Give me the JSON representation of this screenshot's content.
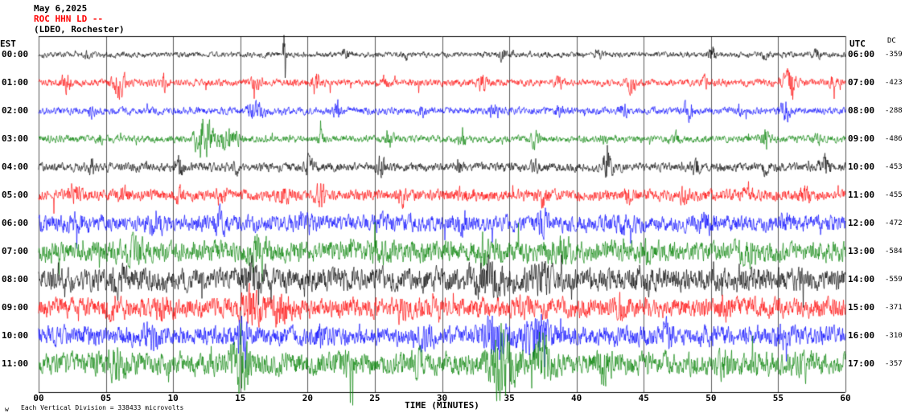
{
  "header": {
    "date": "May 6,2025",
    "station": "ROC HHN LD --",
    "network": "(LDEO, Rochester)"
  },
  "axes": {
    "left_label": "EST",
    "right_label": "UTC",
    "dc_label": "DC",
    "xlabel": "TIME (MINUTES)",
    "x_ticks": [
      "00",
      "05",
      "10",
      "15",
      "20",
      "25",
      "30",
      "35",
      "40",
      "45",
      "50",
      "55",
      "60"
    ]
  },
  "footer": {
    "mark": "w",
    "scale_note": "Each Vertical Division = 338433 microvolts"
  },
  "colors": {
    "black": "#000000",
    "red": "#ff0000",
    "blue": "#0000ff",
    "green": "#008000",
    "grid": "#5a5a5a",
    "frame": "#000000"
  },
  "chart_data": {
    "type": "line",
    "title": "ROC HHN LD -- (LDEO, Rochester) May 6,2025",
    "xlabel": "TIME (MINUTES)",
    "x_range_minutes": [
      0,
      60
    ],
    "x_tick_interval_minutes": 5,
    "grid": "vertical-only",
    "rows": [
      {
        "est": "00:00",
        "utc": "06:00",
        "dc": "-359",
        "color": "black",
        "seed": 101,
        "amp": 3.5,
        "spikes": [
          [
            0.06,
            6,
            0.004
          ],
          [
            0.305,
            52,
            0.0015
          ],
          [
            0.38,
            7,
            0.004
          ],
          [
            0.455,
            5,
            0.004
          ],
          [
            0.575,
            7,
            0.004
          ],
          [
            0.695,
            5,
            0.004
          ],
          [
            0.835,
            9,
            0.004
          ],
          [
            0.9,
            6,
            0.004
          ],
          [
            0.965,
            7,
            0.004
          ]
        ]
      },
      {
        "est": "01:00",
        "utc": "07:00",
        "dc": "-423",
        "color": "red",
        "seed": 102,
        "amp": 4.5,
        "spikes": [
          [
            0.035,
            10,
            0.006
          ],
          [
            0.1,
            16,
            0.008
          ],
          [
            0.155,
            8,
            0.004
          ],
          [
            0.27,
            9,
            0.005
          ],
          [
            0.345,
            11,
            0.005
          ],
          [
            0.43,
            7,
            0.004
          ],
          [
            0.55,
            9,
            0.005
          ],
          [
            0.645,
            9,
            0.004
          ],
          [
            0.735,
            11,
            0.005
          ],
          [
            0.825,
            7,
            0.004
          ],
          [
            0.93,
            15,
            0.008
          ],
          [
            0.985,
            8,
            0.004
          ]
        ]
      },
      {
        "est": "02:00",
        "utc": "08:00",
        "dc": "-288",
        "color": "blue",
        "seed": 103,
        "amp": 4.5,
        "spikes": [
          [
            0.065,
            7,
            0.004
          ],
          [
            0.27,
            12,
            0.01
          ],
          [
            0.37,
            10,
            0.005
          ],
          [
            0.475,
            6,
            0.004
          ],
          [
            0.565,
            9,
            0.005
          ],
          [
            0.645,
            7,
            0.004
          ],
          [
            0.725,
            9,
            0.004
          ],
          [
            0.805,
            11,
            0.006
          ],
          [
            0.87,
            6,
            0.004
          ],
          [
            0.925,
            12,
            0.006
          ]
        ]
      },
      {
        "est": "03:00",
        "utc": "09:00",
        "dc": "-486",
        "color": "green",
        "seed": 104,
        "amp": 4.5,
        "spikes": [
          [
            0.075,
            6,
            0.004
          ],
          [
            0.205,
            28,
            0.01
          ],
          [
            0.235,
            16,
            0.012
          ],
          [
            0.35,
            6,
            0.004
          ],
          [
            0.435,
            9,
            0.005
          ],
          [
            0.525,
            11,
            0.005
          ],
          [
            0.615,
            9,
            0.005
          ],
          [
            0.7,
            6,
            0.004
          ],
          [
            0.79,
            6,
            0.004
          ],
          [
            0.9,
            11,
            0.005
          ],
          [
            0.965,
            7,
            0.004
          ]
        ]
      },
      {
        "est": "04:00",
        "utc": "10:00",
        "dc": "-453",
        "color": "black",
        "seed": 105,
        "amp": 5.5,
        "spikes": [
          [
            0.065,
            9,
            0.005
          ],
          [
            0.175,
            11,
            0.005
          ],
          [
            0.245,
            7,
            0.004
          ],
          [
            0.335,
            9,
            0.005
          ],
          [
            0.425,
            11,
            0.005
          ],
          [
            0.52,
            7,
            0.004
          ],
          [
            0.615,
            7,
            0.004
          ],
          [
            0.705,
            17,
            0.006
          ],
          [
            0.815,
            9,
            0.005
          ],
          [
            0.9,
            7,
            0.004
          ],
          [
            0.975,
            15,
            0.006
          ]
        ]
      },
      {
        "est": "05:00",
        "utc": "11:00",
        "dc": "-455",
        "color": "red",
        "seed": 106,
        "amp": 7,
        "spikes": [
          [
            0.045,
            12,
            0.006
          ],
          [
            0.105,
            8,
            0.005
          ],
          [
            0.175,
            7,
            0.005
          ],
          [
            0.225,
            10,
            0.006
          ],
          [
            0.305,
            9,
            0.006
          ],
          [
            0.35,
            12,
            0.006
          ],
          [
            0.45,
            8,
            0.005
          ],
          [
            0.525,
            7,
            0.005
          ],
          [
            0.625,
            9,
            0.005
          ],
          [
            0.73,
            7,
            0.005
          ],
          [
            0.8,
            9,
            0.005
          ],
          [
            0.875,
            7,
            0.005
          ],
          [
            0.95,
            9,
            0.005
          ]
        ]
      },
      {
        "est": "06:00",
        "utc": "12:00",
        "dc": "-472",
        "color": "blue",
        "seed": 107,
        "amp": 10,
        "spikes": [
          [
            0.05,
            6,
            0.01
          ],
          [
            0.145,
            8,
            0.01
          ],
          [
            0.225,
            10,
            0.008
          ],
          [
            0.33,
            8,
            0.008
          ],
          [
            0.425,
            6,
            0.008
          ],
          [
            0.525,
            8,
            0.008
          ],
          [
            0.625,
            12,
            0.008
          ],
          [
            0.725,
            8,
            0.008
          ],
          [
            0.825,
            8,
            0.008
          ],
          [
            0.925,
            6,
            0.008
          ]
        ]
      },
      {
        "est": "07:00",
        "utc": "13:00",
        "dc": "-584",
        "color": "green",
        "seed": 108,
        "amp": 13,
        "spikes": [
          [
            0.12,
            8,
            0.01
          ],
          [
            0.27,
            12,
            0.012
          ],
          [
            0.42,
            8,
            0.01
          ],
          [
            0.55,
            10,
            0.01
          ],
          [
            0.65,
            8,
            0.01
          ],
          [
            0.75,
            6,
            0.01
          ],
          [
            0.88,
            8,
            0.01
          ]
        ]
      },
      {
        "est": "08:00",
        "utc": "14:00",
        "dc": "-559",
        "color": "black",
        "seed": 109,
        "amp": 14,
        "spikes": [
          [
            0.1,
            8,
            0.01
          ],
          [
            0.265,
            13,
            0.012
          ],
          [
            0.555,
            16,
            0.02
          ],
          [
            0.625,
            12,
            0.012
          ],
          [
            0.75,
            8,
            0.01
          ],
          [
            0.875,
            6,
            0.01
          ]
        ]
      },
      {
        "est": "09:00",
        "utc": "15:00",
        "dc": "-371",
        "color": "red",
        "seed": 110,
        "amp": 12,
        "spikes": [
          [
            0.09,
            12,
            0.008
          ],
          [
            0.155,
            10,
            0.008
          ],
          [
            0.265,
            26,
            0.012
          ],
          [
            0.3,
            16,
            0.01
          ],
          [
            0.45,
            7,
            0.008
          ],
          [
            0.6,
            9,
            0.008
          ],
          [
            0.72,
            7,
            0.008
          ],
          [
            0.85,
            7,
            0.008
          ]
        ]
      },
      {
        "est": "10:00",
        "utc": "16:00",
        "dc": "-310",
        "color": "blue",
        "seed": 111,
        "amp": 12,
        "spikes": [
          [
            0.14,
            10,
            0.008
          ],
          [
            0.25,
            12,
            0.008
          ],
          [
            0.35,
            8,
            0.008
          ],
          [
            0.48,
            8,
            0.008
          ],
          [
            0.565,
            22,
            0.012
          ],
          [
            0.615,
            18,
            0.015
          ],
          [
            0.78,
            10,
            0.008
          ],
          [
            0.92,
            8,
            0.008
          ]
        ]
      },
      {
        "est": "11:00",
        "utc": "17:00",
        "dc": "-357",
        "color": "green",
        "seed": 112,
        "amp": 14,
        "spikes": [
          [
            0.1,
            12,
            0.01
          ],
          [
            0.25,
            30,
            0.012
          ],
          [
            0.38,
            10,
            0.008
          ],
          [
            0.47,
            8,
            0.008
          ],
          [
            0.575,
            40,
            0.015
          ],
          [
            0.625,
            28,
            0.01
          ],
          [
            0.7,
            12,
            0.01
          ],
          [
            0.85,
            10,
            0.008
          ],
          [
            0.95,
            8,
            0.008
          ]
        ]
      }
    ]
  }
}
